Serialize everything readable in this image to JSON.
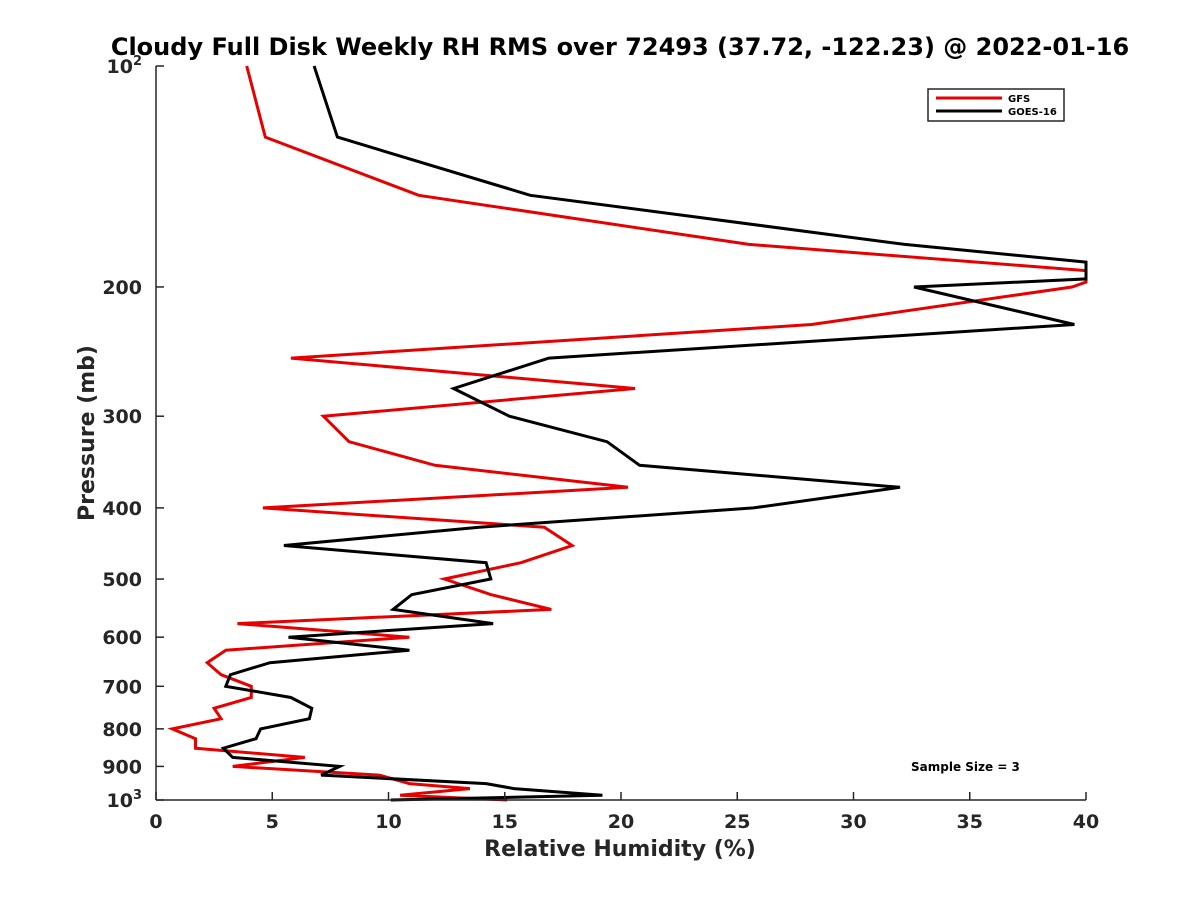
{
  "chart_data": {
    "type": "line",
    "title": "Cloudy Full Disk Weekly RH RMS over 72493 (37.72, -122.23) @ 2022-01-16",
    "xlabel": "Relative Humidity (%)",
    "ylabel": "Pressure (mb)",
    "xlim": [
      0,
      40
    ],
    "ylim": [
      100,
      1000
    ],
    "y_scale": "log",
    "y_reversed": true,
    "grid": false,
    "legend_position": "top-right",
    "x_ticks": [
      "0",
      "5",
      "10",
      "15",
      "20",
      "25",
      "30",
      "35",
      "40"
    ],
    "y_ticks": [
      {
        "value": 100,
        "base": "10",
        "sup": "2"
      },
      {
        "value": 200,
        "label": "200"
      },
      {
        "value": 300,
        "label": "300"
      },
      {
        "value": 400,
        "label": "400"
      },
      {
        "value": 500,
        "label": "500"
      },
      {
        "value": 600,
        "label": "600"
      },
      {
        "value": 700,
        "label": "700"
      },
      {
        "value": 800,
        "label": "800"
      },
      {
        "value": 900,
        "label": "900"
      },
      {
        "value": 1000,
        "base": "10",
        "sup": "3"
      }
    ],
    "series": [
      {
        "name": "GFS",
        "color": "#e60000",
        "points": [
          [
            3.9,
            100
          ],
          [
            4.7,
            125
          ],
          [
            11.3,
            150
          ],
          [
            25.5,
            175
          ],
          [
            40,
            190
          ],
          [
            40,
            197
          ],
          [
            39.4,
            200
          ],
          [
            28.2,
            225
          ],
          [
            5.8,
            250
          ],
          [
            20.6,
            275
          ],
          [
            7.2,
            300
          ],
          [
            8.3,
            325
          ],
          [
            12.0,
            350
          ],
          [
            20.3,
            375
          ],
          [
            4.6,
            400
          ],
          [
            16.7,
            425
          ],
          [
            17.9,
            450
          ],
          [
            15.7,
            475
          ],
          [
            12.4,
            500
          ],
          [
            14.4,
            525
          ],
          [
            17.0,
            550
          ],
          [
            3.5,
            575
          ],
          [
            10.9,
            600
          ],
          [
            3.0,
            625
          ],
          [
            2.2,
            650
          ],
          [
            2.8,
            675
          ],
          [
            4.1,
            700
          ],
          [
            4.1,
            725
          ],
          [
            2.5,
            750
          ],
          [
            2.8,
            775
          ],
          [
            0.7,
            800
          ],
          [
            1.7,
            825
          ],
          [
            1.7,
            850
          ],
          [
            6.4,
            875
          ],
          [
            3.3,
            900
          ],
          [
            9.6,
            925
          ],
          [
            10.9,
            950
          ],
          [
            13.5,
            965
          ],
          [
            10.5,
            985
          ],
          [
            15.1,
            1000
          ]
        ]
      },
      {
        "name": "GOES-16",
        "color": "#000000",
        "points": [
          [
            6.8,
            100
          ],
          [
            7.8,
            125
          ],
          [
            16.1,
            150
          ],
          [
            32.2,
            175
          ],
          [
            40,
            185
          ],
          [
            40,
            195
          ],
          [
            32.6,
            200
          ],
          [
            39.5,
            225
          ],
          [
            16.9,
            250
          ],
          [
            12.8,
            275
          ],
          [
            15.2,
            300
          ],
          [
            19.4,
            325
          ],
          [
            20.8,
            350
          ],
          [
            32.0,
            375
          ],
          [
            25.7,
            400
          ],
          [
            13.9,
            425
          ],
          [
            5.5,
            450
          ],
          [
            14.2,
            475
          ],
          [
            14.4,
            500
          ],
          [
            11.0,
            525
          ],
          [
            10.2,
            550
          ],
          [
            14.5,
            575
          ],
          [
            5.7,
            600
          ],
          [
            10.9,
            625
          ],
          [
            4.9,
            650
          ],
          [
            3.2,
            675
          ],
          [
            3.0,
            700
          ],
          [
            5.8,
            725
          ],
          [
            6.7,
            750
          ],
          [
            6.6,
            775
          ],
          [
            4.5,
            800
          ],
          [
            4.3,
            825
          ],
          [
            2.9,
            850
          ],
          [
            3.3,
            875
          ],
          [
            7.9,
            900
          ],
          [
            7.1,
            925
          ],
          [
            14.2,
            950
          ],
          [
            15.4,
            965
          ],
          [
            19.2,
            985
          ],
          [
            10.1,
            1000
          ]
        ]
      }
    ],
    "annotation": "Sample Size = 3"
  }
}
